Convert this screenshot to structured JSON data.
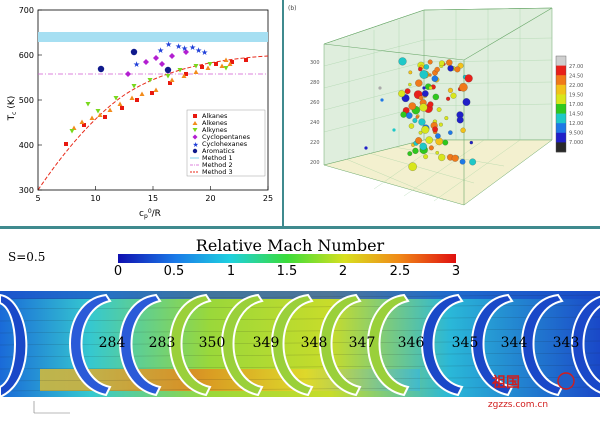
{
  "panel_a": {
    "y_axis_label_main": "T",
    "y_axis_label_sub": "c",
    "y_axis_label_unit": " (K)",
    "x_axis_label_main": "c",
    "x_axis_label_sub": "p",
    "x_axis_label_sup": "0",
    "x_axis_label_rest": "/R",
    "y_ticks": [
      "300",
      "400",
      "500",
      "600",
      "700"
    ],
    "x_ticks": [
      "5",
      "10",
      "15",
      "20",
      "25"
    ],
    "legend": [
      "Alkanes",
      "Alkenes",
      "Alkynes",
      "Cyclopentanes",
      "Cyclohexanes",
      "Aromatics",
      "Method 1",
      "Method 2",
      "Method 3"
    ],
    "colors": {
      "alkanes": "#e8180f",
      "alkenes": "#f28c1c",
      "alkynes": "#78d81c",
      "cyclopentanes": "#b31fd1",
      "cyclohexanes": "#1f3fd8",
      "aromatics": "#101a8c",
      "method1": "#a6dff2",
      "method2": "#d35bd3",
      "method3": "#e82a1a"
    }
  },
  "panel_b": {
    "corner_label": "(b)",
    "z_ticks": [
      "200",
      "220",
      "240",
      "260",
      "280",
      "300"
    ],
    "colorbar_ticks": [
      "27.00",
      "24.50",
      "22.00",
      "19.50",
      "17.00",
      "14.50",
      "12.00",
      "9.500",
      "7.000"
    ],
    "colorbar_colors": [
      "#cfcfcf",
      "#e8201a",
      "#f07a1a",
      "#f2c21a",
      "#d8e61c",
      "#2fc81e",
      "#1ec8c8",
      "#1e78e6",
      "#2020c8",
      "#2a2a2a"
    ]
  },
  "panel_c": {
    "parameter_label": "S=0.5",
    "colorbar_title": "Relative Mach Number",
    "colorbar_ticks": [
      "0",
      "0.5",
      "1",
      "1.5",
      "2",
      "2.5",
      "3"
    ],
    "blade_labels": [
      "284",
      "283",
      "350",
      "349",
      "348",
      "347",
      "346",
      "345",
      "344",
      "343"
    ],
    "watermark_text": "祖国",
    "watermark_url": "zgzzs.com.cn"
  }
}
